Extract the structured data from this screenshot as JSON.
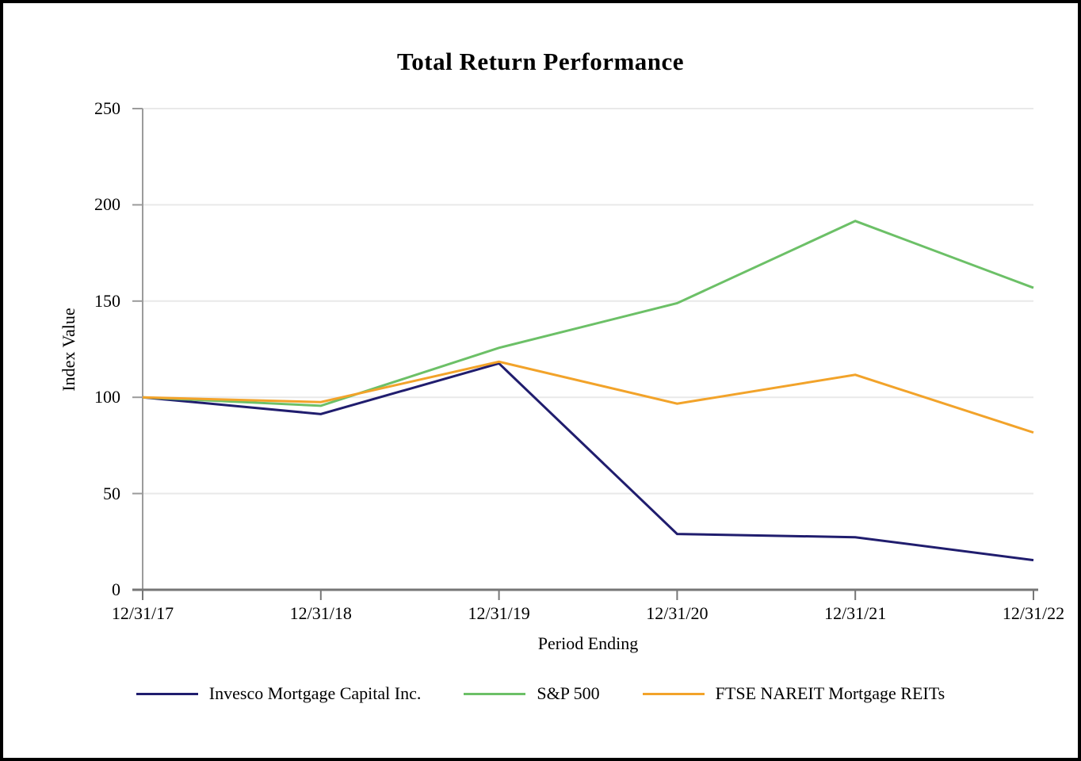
{
  "chart_data": {
    "type": "line",
    "title": "Total Return Performance",
    "xlabel": "Period Ending",
    "ylabel": "Index Value",
    "categories": [
      "12/31/17",
      "12/31/18",
      "12/31/19",
      "12/31/20",
      "12/31/21",
      "12/31/22"
    ],
    "series": [
      {
        "name": "Invesco Mortgage Capital Inc.",
        "color": "#201d6e",
        "values": [
          100,
          91.3,
          117.6,
          29.0,
          27.3,
          15.4
        ]
      },
      {
        "name": "S&P 500",
        "color": "#6cc067",
        "values": [
          100,
          95.6,
          125.7,
          148.9,
          191.6,
          156.9
        ]
      },
      {
        "name": "FTSE NAREIT Mortgage REITs",
        "color": "#f2a32a",
        "values": [
          100,
          97.5,
          118.5,
          96.7,
          111.7,
          81.7
        ]
      }
    ],
    "ylim": [
      0,
      250
    ],
    "yticks": [
      0,
      50,
      100,
      150,
      200,
      250
    ],
    "grid": "horizontal",
    "legend_position": "bottom"
  },
  "colors": {
    "gridline": "#e9e9e9",
    "y_axis": "#9b9b9b",
    "x_axis": "#767676",
    "text": "#000000",
    "frame_border": "#000000"
  }
}
